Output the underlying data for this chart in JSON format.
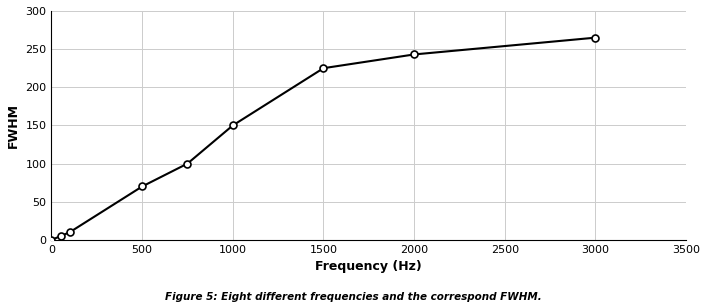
{
  "x": [
    0,
    50,
    100,
    500,
    750,
    1000,
    1500,
    2000,
    3000
  ],
  "y": [
    0,
    5,
    10,
    70,
    100,
    150,
    225,
    243,
    265
  ],
  "line_color": "#000000",
  "marker": "o",
  "marker_facecolor": "#ffffff",
  "marker_edgecolor": "#000000",
  "marker_size": 5,
  "line_width": 1.5,
  "xlabel": "Frequency (Hz)",
  "ylabel": "FWHM",
  "xlim": [
    0,
    3500
  ],
  "ylim": [
    0,
    300
  ],
  "xticks": [
    0,
    500,
    1000,
    1500,
    2000,
    2500,
    3000,
    3500
  ],
  "yticks": [
    0,
    50,
    100,
    150,
    200,
    250,
    300
  ],
  "grid": true,
  "grid_color": "#cccccc",
  "grid_linestyle": "-",
  "grid_linewidth": 0.7,
  "caption": "Figure 5: Eight different frequencies and the correspond FWHM.",
  "xlabel_fontsize": 9,
  "ylabel_fontsize": 9,
  "tick_fontsize": 8,
  "caption_fontsize": 7.5,
  "background_color": "#ffffff",
  "xlabel_fontweight": "bold",
  "ylabel_fontweight": "bold",
  "caption_fontweight": "bold"
}
